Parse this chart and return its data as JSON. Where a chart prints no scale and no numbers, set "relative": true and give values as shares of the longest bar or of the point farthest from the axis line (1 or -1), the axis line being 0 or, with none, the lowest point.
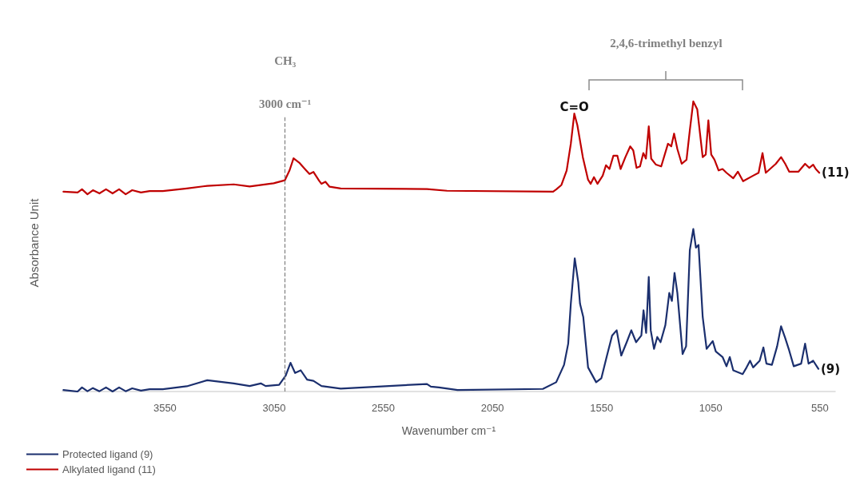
{
  "chart_data": {
    "type": "line",
    "relative": true,
    "xlabel": "Wavenumber cm⁻¹",
    "ylabel": "Absorbance Unit",
    "xlim": [
      4020,
      480
    ],
    "xticks": [
      3550,
      3050,
      2550,
      2050,
      1550,
      1050,
      550
    ],
    "grid": false,
    "legend": "bottom left",
    "marker": "none",
    "line_style": "solid",
    "series": [
      {
        "name": "Protected ligand (9)",
        "color": "#1b2f6e",
        "x": [
          4015,
          3950,
          3930,
          3905,
          3880,
          3850,
          3820,
          3790,
          3760,
          3730,
          3700,
          3660,
          3620,
          3560,
          3450,
          3356,
          3235,
          3162,
          3111,
          3089,
          3027,
          2997,
          2975,
          2954,
          2928,
          2899,
          2870,
          2833,
          2745,
          2350,
          2332,
          2295,
          2210,
          1819,
          1758,
          1722,
          1703,
          1691,
          1673,
          1657,
          1649,
          1634,
          1612,
          1575,
          1551,
          1527,
          1502,
          1481,
          1460,
          1435,
          1414,
          1392,
          1368,
          1358,
          1346,
          1334,
          1325,
          1310,
          1295,
          1280,
          1258,
          1240,
          1228,
          1216,
          1203,
          1179,
          1163,
          1146,
          1130,
          1118,
          1106,
          1087,
          1069,
          1041,
          1027,
          996,
          978,
          963,
          947,
          904,
          886,
          870,
          856,
          826,
          809,
          795,
          770,
          746,
          728,
          709,
          691,
          670,
          636,
          618,
          602,
          581,
          557
        ],
        "values": [
          0.005,
          0.0,
          0.014,
          0.001,
          0.012,
          0.001,
          0.014,
          0.0,
          0.014,
          0.001,
          0.011,
          0.003,
          0.008,
          0.008,
          0.018,
          0.039,
          0.028,
          0.019,
          0.028,
          0.019,
          0.023,
          0.055,
          0.099,
          0.064,
          0.073,
          0.041,
          0.037,
          0.019,
          0.01,
          0.026,
          0.017,
          0.014,
          0.005,
          0.009,
          0.032,
          0.092,
          0.165,
          0.303,
          0.459,
          0.377,
          0.303,
          0.257,
          0.083,
          0.032,
          0.046,
          0.119,
          0.193,
          0.211,
          0.124,
          0.17,
          0.211,
          0.17,
          0.193,
          0.28,
          0.202,
          0.395,
          0.211,
          0.147,
          0.188,
          0.17,
          0.229,
          0.34,
          0.312,
          0.409,
          0.34,
          0.129,
          0.156,
          0.487,
          0.56,
          0.496,
          0.505,
          0.257,
          0.147,
          0.174,
          0.138,
          0.119,
          0.087,
          0.119,
          0.073,
          0.06,
          0.083,
          0.106,
          0.083,
          0.106,
          0.152,
          0.096,
          0.092,
          0.156,
          0.225,
          0.184,
          0.142,
          0.087,
          0.096,
          0.165,
          0.096,
          0.106,
          0.078
        ]
      },
      {
        "name": "Alkylated ligand (11)",
        "color": "#c00000",
        "x": [
          4015,
          3950,
          3930,
          3905,
          3880,
          3850,
          3820,
          3790,
          3760,
          3730,
          3700,
          3660,
          3620,
          3560,
          3450,
          3356,
          3235,
          3162,
          3052,
          3001,
          2979,
          2961,
          2935,
          2910,
          2888,
          2870,
          2844,
          2833,
          2815,
          2796,
          2745,
          2350,
          2258,
          1772,
          1757,
          1734,
          1710,
          1691,
          1675,
          1661,
          1636,
          1612,
          1600,
          1585,
          1569,
          1545,
          1530,
          1514,
          1496,
          1478,
          1463,
          1441,
          1419,
          1405,
          1390,
          1374,
          1359,
          1347,
          1334,
          1323,
          1301,
          1277,
          1246,
          1231,
          1218,
          1203,
          1183,
          1161,
          1146,
          1130,
          1112,
          1087,
          1073,
          1061,
          1048,
          1033,
          1014,
          996,
          978,
          947,
          926,
          902,
          856,
          831,
          813,
          798,
          752,
          728,
          709,
          691,
          648,
          618,
          599,
          581,
          569,
          553
        ],
        "values": [
          0.689,
          0.686,
          0.697,
          0.68,
          0.694,
          0.683,
          0.697,
          0.683,
          0.697,
          0.68,
          0.694,
          0.686,
          0.691,
          0.691,
          0.7,
          0.709,
          0.714,
          0.707,
          0.718,
          0.728,
          0.763,
          0.804,
          0.789,
          0.768,
          0.75,
          0.757,
          0.727,
          0.716,
          0.723,
          0.706,
          0.7,
          0.698,
          0.692,
          0.689,
          0.697,
          0.712,
          0.762,
          0.854,
          0.958,
          0.918,
          0.808,
          0.73,
          0.716,
          0.739,
          0.716,
          0.744,
          0.78,
          0.767,
          0.813,
          0.813,
          0.767,
          0.808,
          0.845,
          0.831,
          0.771,
          0.776,
          0.822,
          0.803,
          0.914,
          0.803,
          0.782,
          0.776,
          0.854,
          0.845,
          0.889,
          0.836,
          0.785,
          0.799,
          0.9,
          1.0,
          0.973,
          0.808,
          0.817,
          0.935,
          0.817,
          0.799,
          0.762,
          0.767,
          0.754,
          0.735,
          0.758,
          0.725,
          0.744,
          0.754,
          0.822,
          0.754,
          0.785,
          0.808,
          0.785,
          0.758,
          0.758,
          0.785,
          0.771,
          0.782,
          0.767,
          0.754
        ]
      }
    ],
    "ref_lines": [
      {
        "axis": "x",
        "value": 3000,
        "label": "3000 cm⁻¹",
        "color": "#7f7f7f",
        "line_style": "dashed"
      }
    ],
    "annotations": [
      "CH₃",
      {
        "text": "C=O",
        "x": 1675,
        "y": 0.96
      },
      "2,4,6-trimethyl benzyl",
      {
        "text": "(11)",
        "x": 553,
        "y": 0.754
      },
      {
        "text": "(9)",
        "x": 557,
        "y": 0.078
      }
    ]
  }
}
